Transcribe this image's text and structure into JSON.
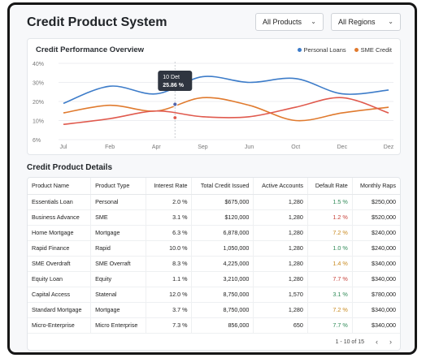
{
  "header": {
    "title": "Credit Product System",
    "products_filter": "All Products",
    "regions_filter": "All Regions"
  },
  "chart_card": {
    "title": "Credit Performance Overview"
  },
  "chart_data": {
    "type": "line",
    "title": "Credit Performance Overview",
    "categories": [
      "Jul",
      "Feb",
      "Apr",
      "Sep",
      "Jun",
      "Oct",
      "Dec",
      "Dez"
    ],
    "yticks": [
      "40%",
      "30%",
      "20%",
      "10%",
      "6%"
    ],
    "series": [
      {
        "name": "Personal Loans",
        "color": "#3d7cc9",
        "values": [
          19,
          28,
          24,
          33,
          30,
          32,
          24,
          26
        ]
      },
      {
        "name": "SME Credit",
        "color": "#e07a2e",
        "values": [
          14,
          18,
          15,
          22,
          18,
          10,
          14,
          17
        ]
      },
      {
        "name": "",
        "color": "#e05a4e",
        "values": [
          8,
          11,
          15,
          12,
          12,
          17,
          22,
          14
        ]
      }
    ],
    "tooltip": {
      "label": "10 Det",
      "value": "25.86 %"
    },
    "legend": "top-right",
    "grid": true
  },
  "table": {
    "title": "Credit Product Details",
    "columns": [
      "Product Name",
      "Product Type",
      "Interest Rate",
      "Total Credit Issued",
      "Active Accounts",
      "Default Rate",
      "Monthly Raps"
    ],
    "rows": [
      [
        "Essentials Loan",
        "Personal",
        "2.0 %",
        "$675,000",
        "1,280",
        "1.5 %",
        "$250,000"
      ],
      [
        "Business Advance",
        "SME",
        "3.1 %",
        "$120,000",
        "1,280",
        "1.2 %",
        "$520,000"
      ],
      [
        "Home Mortgage",
        "Mortgage",
        "6.3 %",
        "6,878,000",
        "1,280",
        "7.2 %",
        "$240,000"
      ],
      [
        "Rapid Finance",
        "Rapid",
        "10.0 %",
        "1,050,000",
        "1,280",
        "1.0 %",
        "$240,000"
      ],
      [
        "SME Overdraft",
        "SME Overraft",
        "8.3 %",
        "4,225,000",
        "1,280",
        "1.4 %",
        "$340,000"
      ],
      [
        "Equity Loan",
        "Equity",
        "1.1 %",
        "3,210,000",
        "1,280",
        "7.7 %",
        "$340,000"
      ],
      [
        "Capital Access",
        "Statenal",
        "12.0 %",
        "8,750,000",
        "1,570",
        "3.1 %",
        "$780,000"
      ],
      [
        "Standard Mortgage",
        "Mortgage",
        "3.7 %",
        "8,750,000",
        "1,280",
        "7.2 %",
        "$340,000"
      ],
      [
        "Micro-Enterprise",
        "Micro Enterprise",
        "7.3 %",
        "856,000",
        "650",
        "7.7 %",
        "$340,000"
      ]
    ],
    "default_rate_colors": [
      "#2f8a57",
      "#c8423a",
      "#c98a1f",
      "#2f8a57",
      "#c98a1f",
      "#c8423a",
      "#2f8a57",
      "#c98a1f",
      "#2f8a57"
    ],
    "pagination": "1 - 10 of 15"
  }
}
